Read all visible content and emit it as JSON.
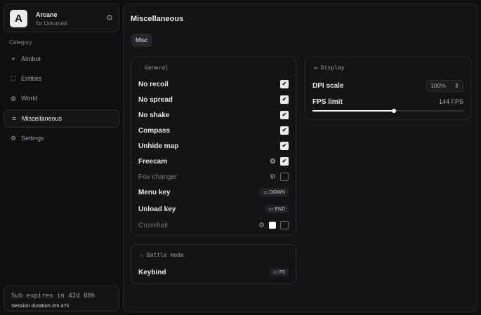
{
  "brand": {
    "logo": "A",
    "name": "Arcane",
    "subtitle": "for Unturned"
  },
  "sidebar": {
    "category_label": "Category",
    "items": [
      {
        "label": "Aimbot",
        "icon": "crosshair-icon"
      },
      {
        "label": "Entities",
        "icon": "scan-icon"
      },
      {
        "label": "World",
        "icon": "globe-icon"
      },
      {
        "label": "Miscellaneous",
        "icon": "grid-icon",
        "active": true
      },
      {
        "label": "Settings",
        "icon": "gear-icon"
      }
    ]
  },
  "subscription": {
    "expires": "Sub expires in 42d 00h",
    "session": "Session duration 2m 47s"
  },
  "main": {
    "title": "Miscellaneous",
    "tabs": [
      "Misc"
    ]
  },
  "general": {
    "title": "General",
    "rows": [
      {
        "label": "No recoil",
        "checked": true
      },
      {
        "label": "No spread",
        "checked": true
      },
      {
        "label": "No shake",
        "checked": true
      },
      {
        "label": "Compass",
        "checked": true
      },
      {
        "label": "Unhide map",
        "checked": true
      },
      {
        "label": "Freecam",
        "checked": true
      },
      {
        "label": "Fov changer",
        "checked": false
      },
      {
        "label": "Menu key",
        "key": "DOWN"
      },
      {
        "label": "Unload key",
        "key": "END"
      },
      {
        "label": "Crosshair",
        "checked": false,
        "color": "#ffffff"
      }
    ]
  },
  "display": {
    "title": "Display",
    "dpi_label": "DPI scale",
    "dpi_value": "100%",
    "fps_label": "FPS limit",
    "fps_value": "144 FPS",
    "fps_slider_fraction": 0.54
  },
  "battle": {
    "title": "Battle mode",
    "keybind_label": "Keybind",
    "keybind_value": "F5"
  },
  "check_glyph": "✔"
}
